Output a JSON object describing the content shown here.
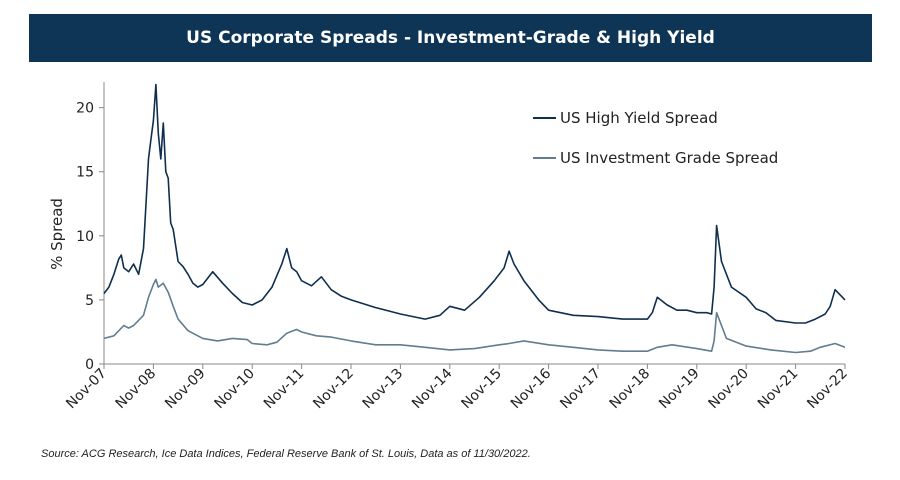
{
  "chart_data": {
    "type": "line",
    "title": "US Corporate Spreads - Investment-Grade & High Yield",
    "ylabel": "% Spread",
    "xlabel": "",
    "ylim": [
      0,
      22
    ],
    "yticks": [
      0,
      5,
      10,
      15,
      20
    ],
    "x_tick_labels": [
      "Nov-07",
      "Nov-08",
      "Nov-09",
      "Nov-10",
      "Nov-11",
      "Nov-12",
      "Nov-13",
      "Nov-14",
      "Nov-15",
      "Nov-16",
      "Nov-17",
      "Nov-18",
      "Nov-19",
      "Nov-20",
      "Nov-21",
      "Nov-22"
    ],
    "x_unit": "years since Nov-07",
    "legend_position": "top-right",
    "series": [
      {
        "name": "US High Yield Spread",
        "color": "#0f2f4f",
        "x": [
          0,
          0.1,
          0.2,
          0.3,
          0.35,
          0.4,
          0.5,
          0.6,
          0.7,
          0.8,
          0.9,
          0.95,
          1.0,
          1.05,
          1.1,
          1.15,
          1.2,
          1.25,
          1.3,
          1.35,
          1.4,
          1.5,
          1.6,
          1.7,
          1.8,
          1.9,
          2.0,
          2.2,
          2.4,
          2.6,
          2.8,
          3.0,
          3.2,
          3.4,
          3.6,
          3.7,
          3.8,
          3.9,
          4.0,
          4.2,
          4.4,
          4.6,
          4.8,
          5.0,
          5.5,
          6.0,
          6.5,
          6.8,
          7.0,
          7.3,
          7.6,
          7.9,
          8.1,
          8.2,
          8.3,
          8.5,
          8.8,
          9.0,
          9.5,
          10.0,
          10.5,
          11.0,
          11.1,
          11.2,
          11.4,
          11.6,
          11.8,
          12.0,
          12.2,
          12.3,
          12.35,
          12.4,
          12.5,
          12.7,
          13.0,
          13.2,
          13.4,
          13.6,
          14.0,
          14.2,
          14.4,
          14.6,
          14.7,
          14.8,
          15.0
        ],
        "values": [
          5.5,
          6.0,
          7.0,
          8.2,
          8.5,
          7.5,
          7.2,
          7.8,
          7.0,
          9.0,
          16.0,
          17.5,
          19.0,
          21.8,
          18.0,
          16.0,
          18.8,
          15.0,
          14.5,
          11.0,
          10.5,
          8.0,
          7.6,
          7.0,
          6.3,
          6.0,
          6.2,
          7.2,
          6.3,
          5.5,
          4.8,
          4.6,
          5.0,
          6.0,
          7.8,
          9.0,
          7.5,
          7.2,
          6.5,
          6.1,
          6.8,
          5.8,
          5.3,
          5.0,
          4.4,
          3.9,
          3.5,
          3.8,
          4.5,
          4.2,
          5.2,
          6.5,
          7.5,
          8.8,
          7.8,
          6.5,
          5.0,
          4.2,
          3.8,
          3.7,
          3.5,
          3.5,
          4.0,
          5.2,
          4.6,
          4.2,
          4.2,
          4.0,
          4.0,
          3.9,
          6.0,
          10.8,
          8.0,
          6.0,
          5.2,
          4.3,
          4.0,
          3.4,
          3.2,
          3.2,
          3.5,
          3.9,
          4.5,
          5.8,
          5.0
        ]
      },
      {
        "name": "US Investment Grade Spread",
        "color": "#617d8e",
        "x": [
          0,
          0.2,
          0.4,
          0.5,
          0.6,
          0.8,
          0.9,
          1.0,
          1.05,
          1.1,
          1.2,
          1.3,
          1.4,
          1.5,
          1.7,
          2.0,
          2.3,
          2.6,
          2.9,
          3.0,
          3.3,
          3.5,
          3.7,
          3.9,
          4.0,
          4.3,
          4.6,
          5.0,
          5.5,
          6.0,
          6.5,
          7.0,
          7.5,
          8.0,
          8.2,
          8.5,
          9.0,
          9.5,
          10.0,
          10.5,
          11.0,
          11.2,
          11.5,
          12.0,
          12.3,
          12.35,
          12.4,
          12.6,
          13.0,
          13.5,
          14.0,
          14.3,
          14.5,
          14.8,
          15.0
        ],
        "values": [
          2.0,
          2.2,
          3.0,
          2.8,
          3.0,
          3.8,
          5.2,
          6.2,
          6.6,
          6.0,
          6.3,
          5.6,
          4.5,
          3.5,
          2.6,
          2.0,
          1.8,
          2.0,
          1.9,
          1.6,
          1.5,
          1.7,
          2.4,
          2.7,
          2.5,
          2.2,
          2.1,
          1.8,
          1.5,
          1.5,
          1.3,
          1.1,
          1.2,
          1.5,
          1.6,
          1.8,
          1.5,
          1.3,
          1.1,
          1.0,
          1.0,
          1.3,
          1.5,
          1.2,
          1.0,
          1.8,
          4.0,
          2.0,
          1.4,
          1.1,
          0.9,
          1.0,
          1.3,
          1.6,
          1.3
        ]
      }
    ]
  },
  "source_text": "Source: ACG Research, Ice Data Indices, Federal Reserve Bank of St. Louis, Data as of 11/30/2022."
}
